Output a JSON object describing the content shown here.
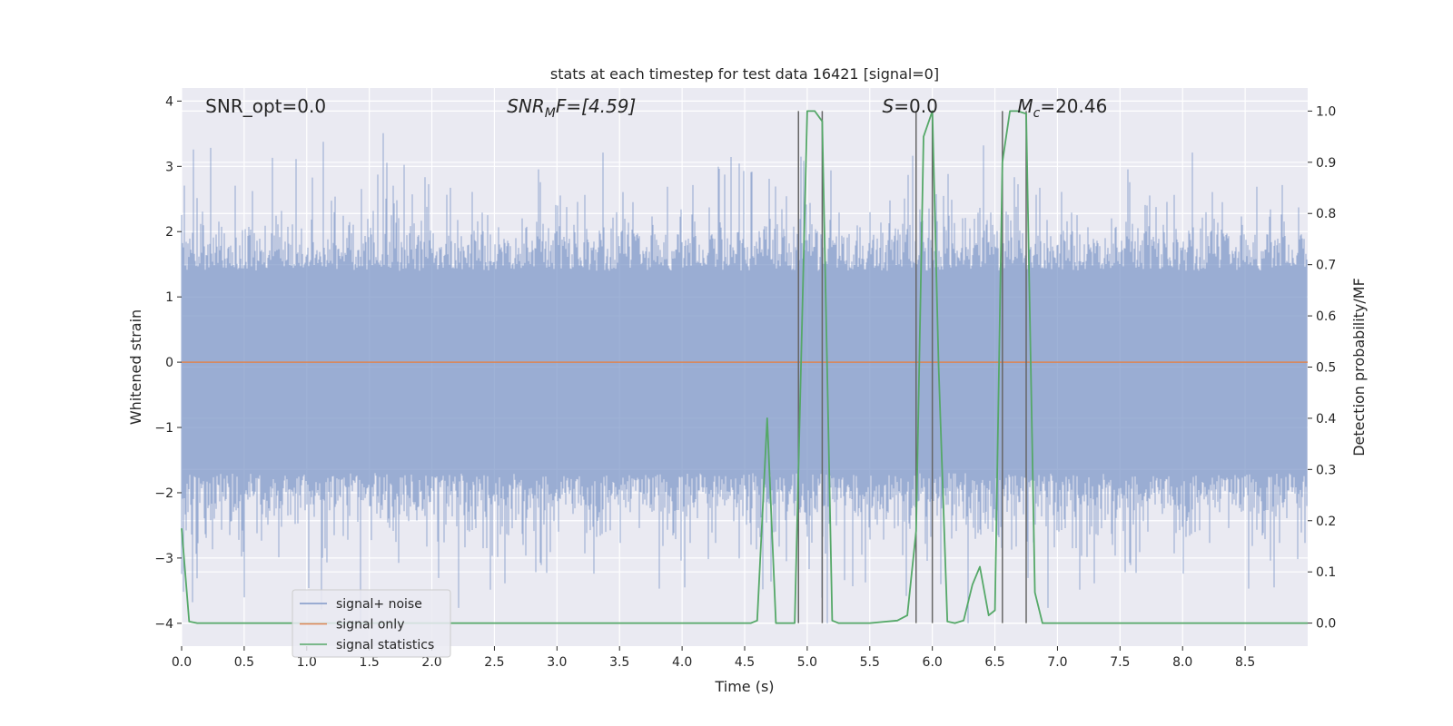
{
  "chart_data": {
    "type": "line",
    "title": "stats at each timestep for test data 16421 [signal=0]",
    "xlabel": "Time (s)",
    "ylabel": "Whitened strain",
    "y2label": "Detection probability/MF",
    "xlim": [
      0.0,
      9.0
    ],
    "ylim": [
      -4.35,
      4.2
    ],
    "y2lim": [
      -0.045,
      1.045
    ],
    "xticks": [
      "0.0",
      "0.5",
      "1.0",
      "1.5",
      "2.0",
      "2.5",
      "3.0",
      "3.5",
      "4.0",
      "4.5",
      "5.0",
      "5.5",
      "6.0",
      "6.5",
      "7.0",
      "7.5",
      "8.0",
      "8.5"
    ],
    "yticks": [
      "−4",
      "−3",
      "−2",
      "−1",
      "0",
      "1",
      "2",
      "3",
      "4"
    ],
    "y2ticks": [
      "0.0",
      "0.1",
      "0.2",
      "0.3",
      "0.4",
      "0.5",
      "0.6",
      "0.7",
      "0.8",
      "0.9",
      "1.0"
    ],
    "grid": true,
    "annotations": {
      "snr_opt": "SNR_opt=0.0",
      "snr_mf_base": "SNR",
      "snr_mf_sub": "M",
      "snr_mf_rest": "F=[4.59]",
      "s_var": "S",
      "s_rest": "=0.0",
      "mc_var": "M",
      "mc_sub": "c",
      "mc_rest": "=20.46"
    },
    "legend": {
      "placement": "lower-left",
      "entries": [
        "signal+ noise",
        "signal only",
        "signal statistics"
      ]
    },
    "series": [
      {
        "name": "signal+ noise",
        "color": "#7f98c8",
        "kind": "noise",
        "sample_rate": 2048,
        "core_band": [
          -1.7,
          1.4
        ],
        "spike_extent": [
          -4.0,
          3.75
        ],
        "seed": 16421
      },
      {
        "name": "signal only",
        "color": "#dd8452",
        "x": [
          0.0,
          9.0
        ],
        "y": [
          0.0,
          0.0
        ]
      },
      {
        "name": "signal statistics",
        "color": "#55a868",
        "axis": "right",
        "x": [
          0.0,
          0.06,
          0.125,
          4.5,
          4.55,
          4.6,
          4.68,
          4.75,
          4.82,
          4.9,
          4.95,
          5.0,
          5.06,
          5.12,
          5.2,
          5.25,
          5.5,
          5.72,
          5.8,
          5.87,
          5.93,
          6.0,
          6.05,
          6.12,
          6.18,
          6.25,
          6.32,
          6.38,
          6.45,
          6.5,
          6.56,
          6.62,
          6.68,
          6.75,
          6.82,
          6.88,
          9.0
        ],
        "y": [
          0.185,
          0.003,
          0.0,
          0.0,
          0.0,
          0.005,
          0.4,
          0.0,
          0.0,
          0.0,
          0.5,
          1.0,
          1.0,
          0.98,
          0.005,
          0.0,
          0.0,
          0.005,
          0.015,
          0.18,
          0.95,
          1.0,
          0.5,
          0.003,
          0.0,
          0.005,
          0.075,
          0.11,
          0.015,
          0.025,
          0.9,
          1.0,
          1.0,
          0.995,
          0.06,
          0.0,
          0.0
        ]
      }
    ],
    "detection_vlines": [
      4.93,
      5.12,
      5.87,
      6.0,
      6.56,
      6.75
    ],
    "vline_color": "#666666"
  }
}
